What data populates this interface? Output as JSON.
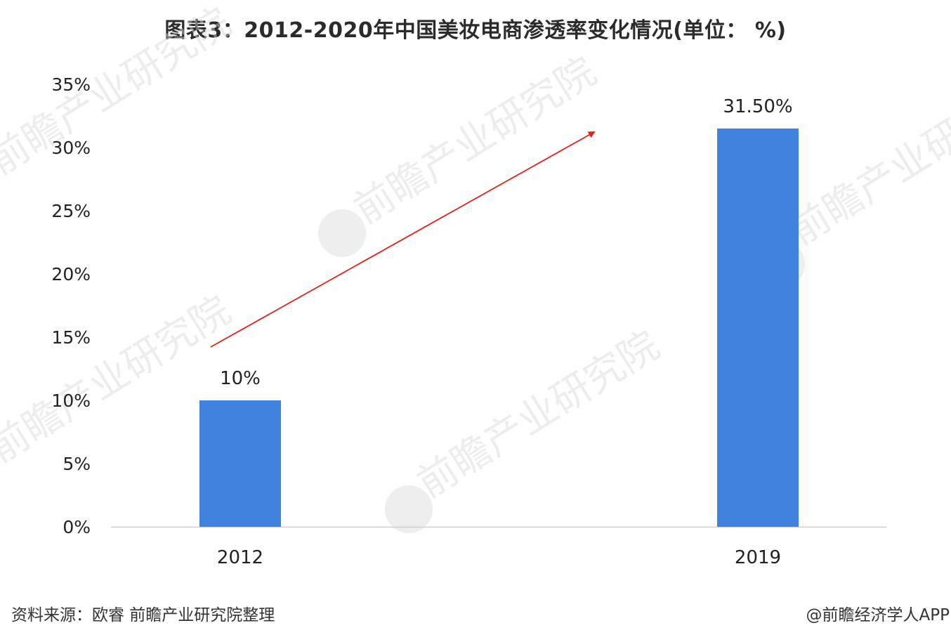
{
  "title": "图表3：2012-2020年中国美妆电商渗透率变化情况(单位： %)",
  "source": "资料来源：欧睿 前瞻产业研究院整理",
  "credit": "@前瞻经济学人APP",
  "watermark": "前瞻产业研究院",
  "colors": {
    "bar": "#3f83df",
    "arrow": "#e2231a",
    "axis": "#d0d0d0"
  },
  "chart_data": {
    "type": "bar",
    "categories": [
      "2012",
      "2019"
    ],
    "values": [
      10,
      31.5
    ],
    "data_labels": [
      "10%",
      "31.50%"
    ],
    "ylim": [
      0,
      35
    ],
    "yticks": [
      "0%",
      "5%",
      "10%",
      "15%",
      "20%",
      "25%",
      "30%",
      "35%"
    ],
    "xlabel": "",
    "ylabel": "",
    "grid": false,
    "legend": "none",
    "annotation": "upward trend arrow"
  }
}
